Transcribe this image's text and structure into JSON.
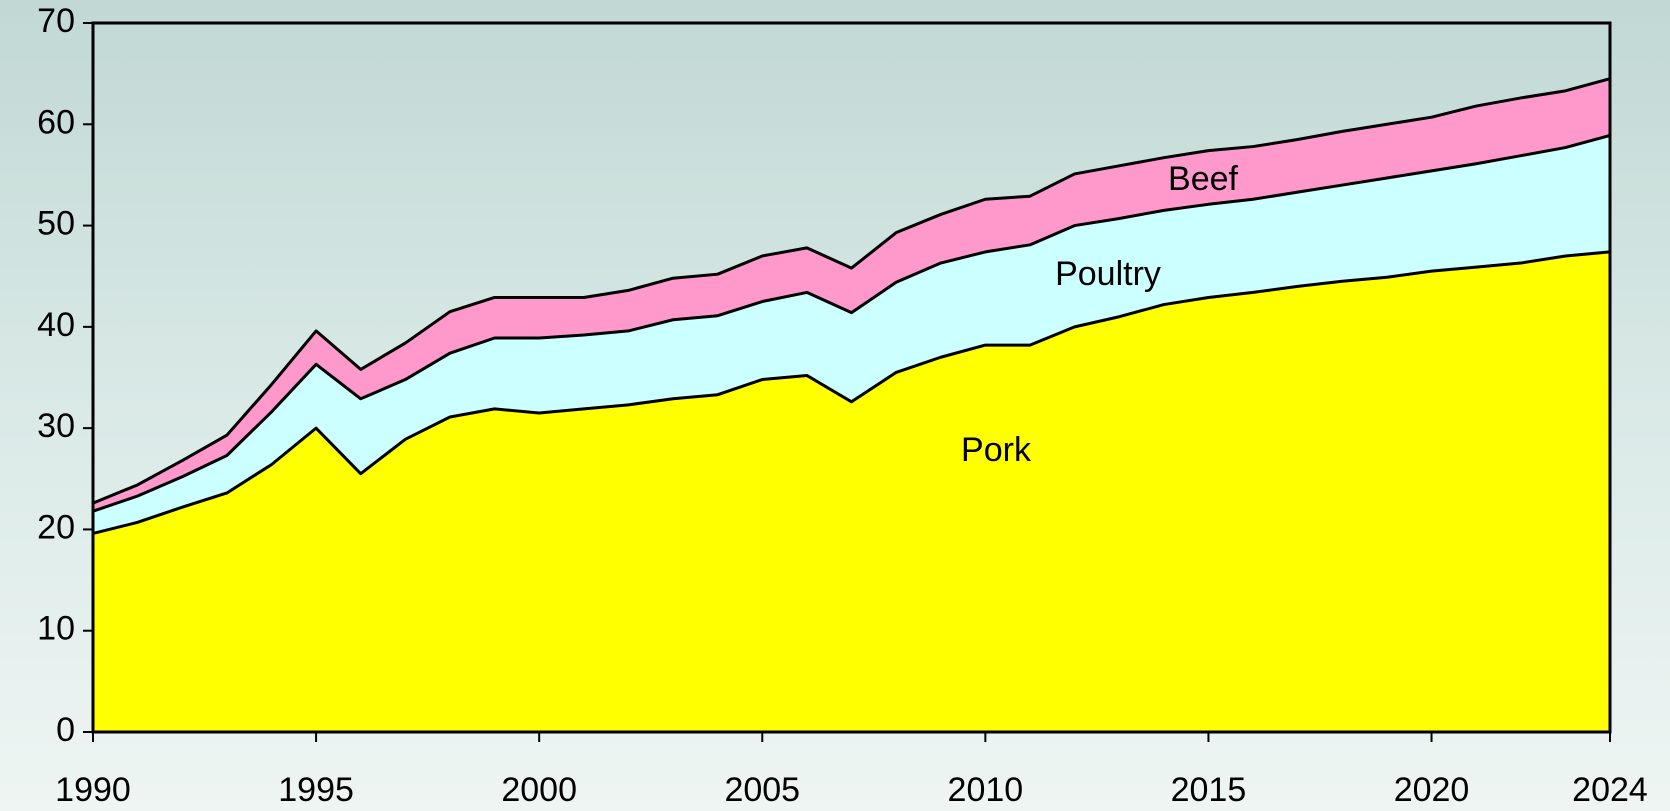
{
  "chart_data": {
    "type": "stacked_area",
    "x": [
      1990,
      1991,
      1992,
      1993,
      1994,
      1995,
      1996,
      1997,
      1998,
      1999,
      2000,
      2001,
      2002,
      2003,
      2004,
      2005,
      2006,
      2007,
      2008,
      2009,
      2010,
      2011,
      2012,
      2013,
      2014,
      2015,
      2016,
      2017,
      2018,
      2019,
      2020,
      2021,
      2022,
      2023,
      2024
    ],
    "series": [
      {
        "name": "Pork",
        "color": "#ffff00",
        "values": [
          19.6,
          20.7,
          22.2,
          23.6,
          26.4,
          30.0,
          25.5,
          28.9,
          31.1,
          31.9,
          31.5,
          31.9,
          32.3,
          32.9,
          33.3,
          34.8,
          35.2,
          32.6,
          35.5,
          37.0,
          38.2,
          38.2,
          40.0,
          41.0,
          42.2,
          42.9,
          43.4,
          44.0,
          44.5,
          44.9,
          45.5,
          45.9,
          46.3,
          47.0,
          47.4
        ]
      },
      {
        "name": "Poultry",
        "color": "#ccffff",
        "values": [
          2.2,
          2.6,
          3.0,
          3.7,
          5.2,
          6.3,
          7.4,
          5.9,
          6.3,
          7.0,
          7.4,
          7.3,
          7.3,
          7.8,
          7.8,
          7.7,
          8.2,
          8.8,
          8.9,
          9.3,
          9.2,
          9.9,
          10.0,
          9.7,
          9.3,
          9.2,
          9.2,
          9.3,
          9.5,
          9.8,
          9.9,
          10.2,
          10.6,
          10.7,
          11.5
        ]
      },
      {
        "name": "Beef",
        "color": "#ff99cc",
        "values": [
          0.8,
          1.1,
          1.6,
          2.0,
          2.7,
          3.3,
          2.9,
          3.6,
          4.1,
          4.0,
          4.0,
          3.7,
          4.0,
          4.1,
          4.1,
          4.5,
          4.4,
          4.4,
          4.9,
          4.8,
          5.2,
          4.8,
          5.1,
          5.2,
          5.2,
          5.3,
          5.2,
          5.2,
          5.3,
          5.3,
          5.3,
          5.7,
          5.7,
          5.6,
          5.6
        ]
      }
    ],
    "xlim": [
      1990,
      2024
    ],
    "xticks": [
      1990,
      1995,
      2000,
      2005,
      2010,
      2015,
      2020,
      2024
    ],
    "ylim": [
      0,
      70
    ],
    "yticks": [
      0,
      10,
      20,
      30,
      40,
      50,
      60,
      70
    ],
    "grid": false
  }
}
